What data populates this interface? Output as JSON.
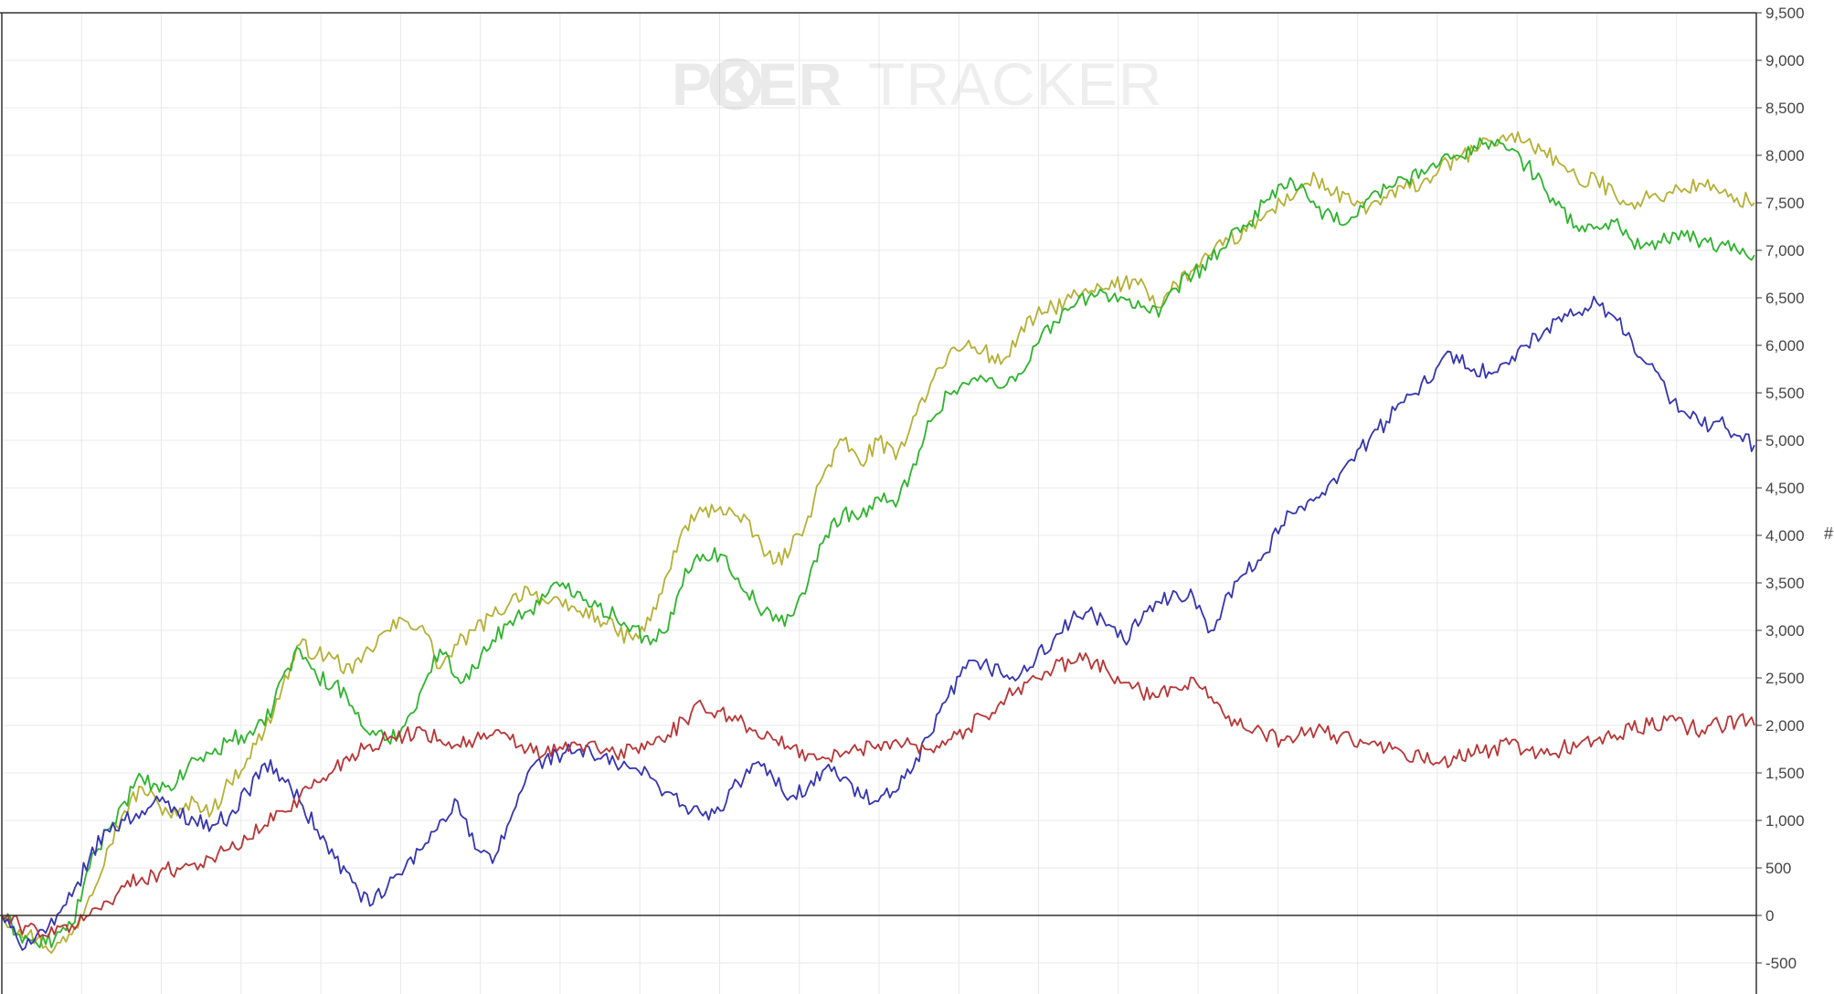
{
  "watermark": {
    "word1": "P",
    "word1_rest": "KER",
    "word2": "TRACKER"
  },
  "side_mark": "#",
  "colors": {
    "gold": "#B5B035",
    "green": "#2DB32D",
    "blue": "#3535B0",
    "red": "#B83535",
    "grid": "#E8E8E8",
    "axis": "#333333"
  },
  "chart_data": {
    "type": "line",
    "title": "",
    "xlabel": "",
    "ylabel": "",
    "ylim": [
      -900,
      9500
    ],
    "xlim": [
      0,
      100
    ],
    "y_ticks": [
      "9,500",
      "9,000",
      "8,500",
      "8,000",
      "7,500",
      "7,000",
      "6,500",
      "6,000",
      "5,500",
      "5,000",
      "4,500",
      "4,000",
      "3,500",
      "3,000",
      "2,500",
      "2,000",
      "1,500",
      "1,000",
      "500",
      "0",
      "-500"
    ],
    "y_tick_values": [
      9500,
      9000,
      8500,
      8000,
      7500,
      7000,
      6500,
      6000,
      5500,
      5000,
      4500,
      4000,
      3500,
      3000,
      2500,
      2000,
      1500,
      1000,
      500,
      0,
      -500
    ],
    "x_grid_count": 22,
    "grid": true,
    "series": [
      {
        "color": "#B5B035",
        "x": [
          0,
          1,
          2,
          3,
          4,
          5,
          6,
          7,
          8,
          9,
          10,
          11,
          12,
          13,
          14,
          15,
          16,
          17,
          18,
          19,
          20,
          21,
          22,
          23,
          24,
          25,
          26,
          27,
          28,
          29,
          30,
          31,
          32,
          33,
          34,
          35,
          36,
          37,
          38,
          39,
          40,
          41,
          42,
          43,
          44,
          45,
          46,
          47,
          48,
          49,
          50,
          51,
          52,
          53,
          54,
          55,
          56,
          57,
          58,
          59,
          60,
          61,
          62,
          63,
          64,
          65,
          66,
          67,
          68,
          69,
          70,
          71,
          72,
          73,
          74,
          75,
          76,
          77,
          78,
          79,
          80,
          81,
          82,
          83,
          84,
          85,
          86,
          87,
          88,
          89,
          90,
          91,
          92,
          93,
          94,
          95,
          96,
          97,
          98,
          99,
          100
        ],
        "y": [
          0,
          -150,
          -250,
          -350,
          -200,
          200,
          700,
          1100,
          1350,
          1150,
          1050,
          1200,
          1100,
          1400,
          1650,
          1950,
          2400,
          2850,
          2750,
          2700,
          2550,
          2800,
          3000,
          3100,
          3050,
          2600,
          2850,
          3000,
          3150,
          3300,
          3450,
          3300,
          3250,
          3200,
          3150,
          3000,
          2900,
          3100,
          3600,
          4100,
          4250,
          4300,
          4200,
          4000,
          3700,
          3850,
          4200,
          4700,
          5000,
          4750,
          5000,
          4800,
          5250,
          5600,
          5900,
          6000,
          5950,
          5800,
          6100,
          6300,
          6400,
          6500,
          6550,
          6600,
          6650,
          6700,
          6400,
          6650,
          6800,
          6950,
          7100,
          7200,
          7350,
          7500,
          7650,
          7750,
          7600,
          7500,
          7450,
          7550,
          7650,
          7700,
          7850,
          7950,
          8050,
          8150,
          8200,
          8150,
          8050,
          7900,
          7700,
          7750,
          7600,
          7500,
          7550,
          7600,
          7650,
          7700,
          7600,
          7550,
          7500
        ]
      },
      {
        "color": "#2DB32D",
        "x": [
          0,
          1,
          2,
          3,
          4,
          5,
          6,
          7,
          8,
          9,
          10,
          11,
          12,
          13,
          14,
          15,
          16,
          17,
          18,
          19,
          20,
          21,
          22,
          23,
          24,
          25,
          26,
          27,
          28,
          29,
          30,
          31,
          32,
          33,
          34,
          35,
          36,
          37,
          38,
          39,
          40,
          41,
          42,
          43,
          44,
          45,
          46,
          47,
          48,
          49,
          50,
          51,
          52,
          53,
          54,
          55,
          56,
          57,
          58,
          59,
          60,
          61,
          62,
          63,
          64,
          65,
          66,
          67,
          68,
          69,
          70,
          71,
          72,
          73,
          74,
          75,
          76,
          77,
          78,
          79,
          80,
          81,
          82,
          83,
          84,
          85,
          86,
          87,
          88,
          89,
          90,
          91,
          92,
          93,
          94,
          95,
          96,
          97,
          98,
          99,
          100
        ],
        "y": [
          0,
          -200,
          -300,
          -250,
          -100,
          500,
          900,
          1200,
          1450,
          1300,
          1400,
          1650,
          1700,
          1850,
          1900,
          2000,
          2500,
          2800,
          2500,
          2450,
          2200,
          1900,
          1850,
          2000,
          2400,
          2800,
          2500,
          2600,
          2900,
          3100,
          3200,
          3350,
          3500,
          3400,
          3250,
          3150,
          3050,
          2850,
          3000,
          3650,
          3800,
          3800,
          3550,
          3300,
          3100,
          3150,
          3500,
          4000,
          4250,
          4200,
          4400,
          4300,
          4750,
          5200,
          5500,
          5600,
          5650,
          5550,
          5700,
          6000,
          6250,
          6400,
          6500,
          6550,
          6500,
          6400,
          6300,
          6600,
          6750,
          6900,
          7100,
          7250,
          7500,
          7700,
          7650,
          7450,
          7300,
          7350,
          7550,
          7650,
          7750,
          7850,
          7900,
          8000,
          8100,
          8150,
          8050,
          7900,
          7650,
          7450,
          7200,
          7250,
          7300,
          7100,
          7050,
          7100,
          7150,
          7100,
          7050,
          7000,
          6950
        ]
      },
      {
        "color": "#3535B0",
        "x": [
          0,
          1,
          2,
          3,
          4,
          5,
          6,
          7,
          8,
          9,
          10,
          11,
          12,
          13,
          14,
          15,
          16,
          17,
          18,
          19,
          20,
          21,
          22,
          23,
          24,
          25,
          26,
          27,
          28,
          29,
          30,
          31,
          32,
          33,
          34,
          35,
          36,
          37,
          38,
          39,
          40,
          41,
          42,
          43,
          44,
          45,
          46,
          47,
          48,
          49,
          50,
          51,
          52,
          53,
          54,
          55,
          56,
          57,
          58,
          59,
          60,
          61,
          62,
          63,
          64,
          65,
          66,
          67,
          68,
          69,
          70,
          71,
          72,
          73,
          74,
          75,
          76,
          77,
          78,
          79,
          80,
          81,
          82,
          83,
          84,
          85,
          86,
          87,
          88,
          89,
          90,
          91,
          92,
          93,
          94,
          95,
          96,
          97,
          98,
          99,
          100
        ],
        "y": [
          0,
          -300,
          -200,
          -100,
          200,
          600,
          900,
          1000,
          1100,
          1200,
          1100,
          1000,
          950,
          1050,
          1300,
          1600,
          1450,
          1200,
          900,
          600,
          350,
          100,
          300,
          500,
          700,
          1000,
          1200,
          700,
          550,
          1000,
          1500,
          1650,
          1700,
          1750,
          1650,
          1600,
          1550,
          1450,
          1300,
          1150,
          1050,
          1100,
          1400,
          1600,
          1450,
          1250,
          1350,
          1550,
          1450,
          1250,
          1200,
          1300,
          1550,
          1900,
          2300,
          2600,
          2650,
          2550,
          2500,
          2700,
          2900,
          3100,
          3200,
          3050,
          2900,
          3100,
          3300,
          3400,
          3350,
          3000,
          3400,
          3600,
          3800,
          4100,
          4300,
          4400,
          4600,
          4800,
          5000,
          5200,
          5400,
          5600,
          5800,
          5900,
          5750,
          5700,
          5800,
          6000,
          6150,
          6250,
          6350,
          6450,
          6300,
          6050,
          5800,
          5500,
          5300,
          5150,
          5200,
          5050,
          4950
        ]
      },
      {
        "color": "#B83535",
        "x": [
          0,
          1,
          2,
          3,
          4,
          5,
          6,
          7,
          8,
          9,
          10,
          11,
          12,
          13,
          14,
          15,
          16,
          17,
          18,
          19,
          20,
          21,
          22,
          23,
          24,
          25,
          26,
          27,
          28,
          29,
          30,
          31,
          32,
          33,
          34,
          35,
          36,
          37,
          38,
          39,
          40,
          41,
          42,
          43,
          44,
          45,
          46,
          47,
          48,
          49,
          50,
          51,
          52,
          53,
          54,
          55,
          56,
          57,
          58,
          59,
          60,
          61,
          62,
          63,
          64,
          65,
          66,
          67,
          68,
          69,
          70,
          71,
          72,
          73,
          74,
          75,
          76,
          77,
          78,
          79,
          80,
          81,
          82,
          83,
          84,
          85,
          86,
          87,
          88,
          89,
          90,
          91,
          92,
          93,
          94,
          95,
          96,
          97,
          98,
          99,
          100
        ],
        "y": [
          0,
          -100,
          -150,
          -200,
          -100,
          0,
          150,
          300,
          400,
          450,
          500,
          550,
          600,
          700,
          800,
          950,
          1100,
          1250,
          1400,
          1550,
          1700,
          1800,
          1850,
          1900,
          1950,
          1850,
          1800,
          1850,
          1900,
          1850,
          1750,
          1700,
          1750,
          1800,
          1750,
          1700,
          1750,
          1800,
          1900,
          2050,
          2200,
          2150,
          2050,
          1950,
          1850,
          1750,
          1700,
          1650,
          1700,
          1750,
          1800,
          1850,
          1800,
          1750,
          1850,
          1950,
          2100,
          2250,
          2400,
          2500,
          2600,
          2650,
          2700,
          2600,
          2450,
          2350,
          2300,
          2400,
          2500,
          2300,
          2100,
          1950,
          1900,
          1850,
          1900,
          1950,
          1900,
          1850,
          1800,
          1750,
          1700,
          1650,
          1600,
          1650,
          1700,
          1750,
          1800,
          1750,
          1700,
          1750,
          1800,
          1850,
          1900,
          1950,
          2000,
          2050,
          2000,
          1950,
          2000,
          2050,
          2000
        ]
      }
    ]
  }
}
